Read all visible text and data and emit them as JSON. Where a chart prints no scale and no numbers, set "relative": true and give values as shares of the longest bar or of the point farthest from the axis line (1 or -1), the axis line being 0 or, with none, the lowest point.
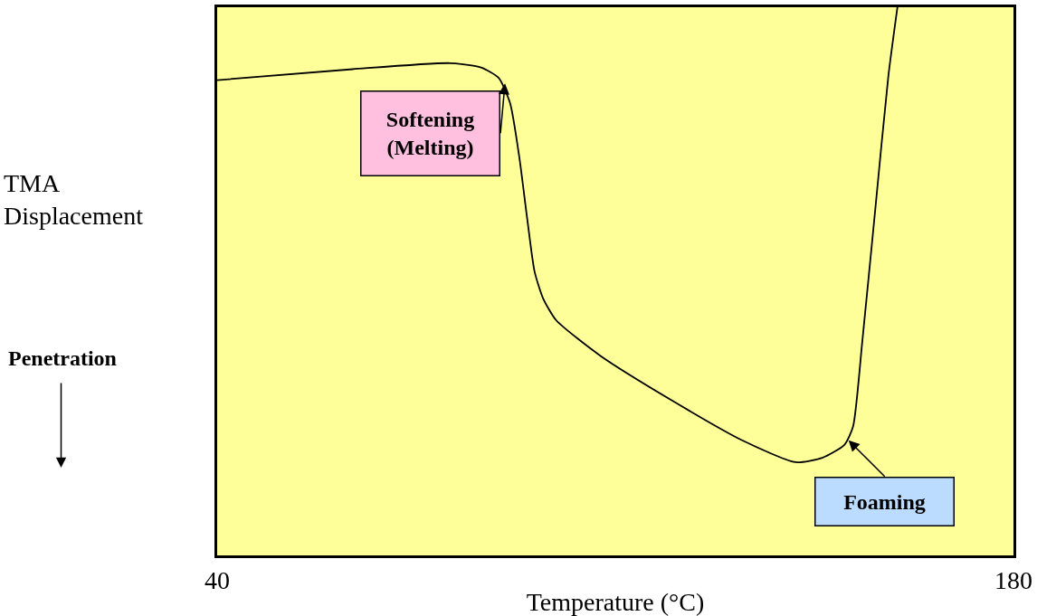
{
  "chart_data": {
    "type": "line",
    "relative": true,
    "xlabel": "Temperature (°C)",
    "ylabel": "TMA\nDisplacement",
    "xlim": [
      40,
      180
    ],
    "xticks": [
      40,
      180
    ],
    "grid": false,
    "legend": false,
    "marker": "none",
    "line_style": "solid",
    "x": [
      40,
      63.8,
      81.0,
      86.4,
      89.5,
      91.5,
      93.1,
      94.5,
      95.8,
      97.3,
      99.6,
      107.4,
      119.9,
      132.3,
      141.7,
      146.4,
      150.3,
      151.8,
      153.4,
      155.7,
      158.0,
      159.6
    ],
    "series": [
      {
        "color": "#000000",
        "values": [
          0.867,
          0.887,
          0.898,
          0.89,
          0.871,
          0.825,
          0.728,
          0.615,
          0.518,
          0.469,
          0.429,
          0.364,
          0.283,
          0.21,
          0.17,
          0.178,
          0.202,
          0.235,
          0.388,
          0.631,
          0.874,
          1.0
        ]
      }
    ],
    "annotations": [
      {
        "text": "Softening\n(Melting)",
        "x": 90.6,
        "y": 0.861
      },
      {
        "text": "Foaming",
        "x": 151.0,
        "y": 0.21
      },
      "Penetration"
    ]
  }
}
